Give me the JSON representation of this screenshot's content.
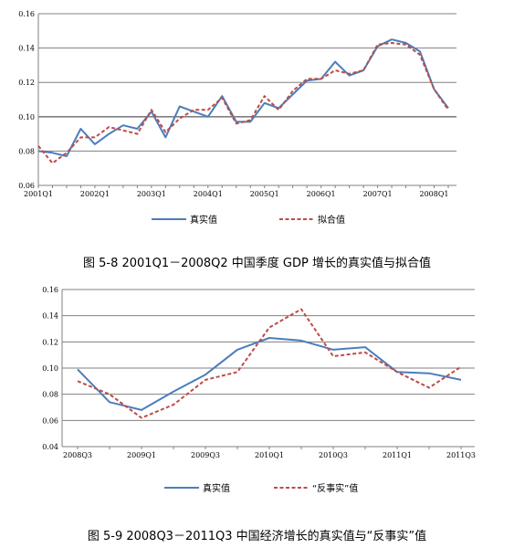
{
  "colors": {
    "real": "#4a7ebb",
    "fitted": "#be4b48",
    "axis": "#808080",
    "grid": "#808080"
  },
  "chart_data": [
    {
      "type": "line",
      "caption": "图 5-8 2001Q1－2008Q2 中国季度 GDP 增长的真实值与拟合值",
      "ylim": [
        0.06,
        0.16
      ],
      "yticks": [
        "0.06",
        "0.08",
        "0.10",
        "0.12",
        "0.14",
        "0.16"
      ],
      "ytick_values": [
        0.06,
        0.08,
        0.1,
        0.12,
        0.14,
        0.16
      ],
      "xtick_labels": [
        "2001Q1",
        "2002Q1",
        "2003Q1",
        "2004Q1",
        "2005Q1",
        "2006Q1",
        "2007Q1",
        "2008Q1"
      ],
      "xtick_index": [
        0,
        4,
        8,
        12,
        16,
        20,
        24,
        28
      ],
      "n_points": 30,
      "grid": true,
      "legend_position": "bottom",
      "series": [
        {
          "name": "真实值",
          "style": "solid",
          "values": [
            0.08,
            0.079,
            0.077,
            0.093,
            0.084,
            0.09,
            0.095,
            0.093,
            0.103,
            0.088,
            0.106,
            0.103,
            0.1,
            0.112,
            0.097,
            0.097,
            0.108,
            0.105,
            0.113,
            0.121,
            0.122,
            0.132,
            0.124,
            0.127,
            0.141,
            0.145,
            0.143,
            0.138,
            0.116,
            0.105
          ]
        },
        {
          "name": "拟合值",
          "style": "dashed",
          "values": [
            0.083,
            0.073,
            0.079,
            0.088,
            0.088,
            0.094,
            0.092,
            0.09,
            0.104,
            0.091,
            0.099,
            0.104,
            0.104,
            0.111,
            0.096,
            0.098,
            0.112,
            0.104,
            0.115,
            0.122,
            0.122,
            0.127,
            0.125,
            0.127,
            0.142,
            0.143,
            0.142,
            0.136,
            0.116,
            0.104
          ]
        }
      ]
    },
    {
      "type": "line",
      "caption": "图 5-9 2008Q3－2011Q3 中国经济增长的真实值与“反事实”值",
      "ylim": [
        0.04,
        0.16
      ],
      "yticks": [
        "0.04",
        "0.06",
        "0.08",
        "0.10",
        "0.12",
        "0.14",
        "0.16"
      ],
      "ytick_values": [
        0.04,
        0.06,
        0.08,
        0.1,
        0.12,
        0.14,
        0.16
      ],
      "xtick_labels": [
        "2008Q3",
        "2009Q1",
        "2009Q3",
        "2010Q1",
        "2010Q3",
        "2011Q1",
        "2011Q3"
      ],
      "xtick_index": [
        0,
        2,
        4,
        6,
        8,
        10,
        12
      ],
      "n_points": 13,
      "grid": true,
      "legend_position": "bottom",
      "series": [
        {
          "name": "真实值",
          "style": "solid",
          "values": [
            0.099,
            0.074,
            0.068,
            0.082,
            0.095,
            0.114,
            0.123,
            0.121,
            0.114,
            0.116,
            0.097,
            0.096,
            0.091
          ]
        },
        {
          "name": "“反事实”值",
          "style": "dashed",
          "values": [
            0.09,
            0.08,
            0.062,
            0.072,
            0.091,
            0.097,
            0.131,
            0.145,
            0.109,
            0.112,
            0.097,
            0.085,
            0.101
          ]
        }
      ]
    }
  ]
}
